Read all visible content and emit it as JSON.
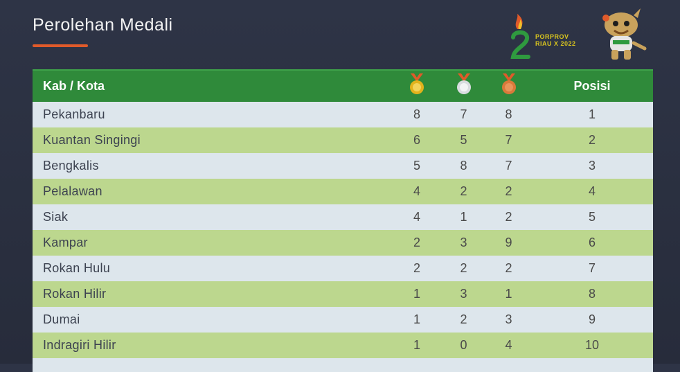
{
  "header": {
    "title": "Perolehan Medali",
    "logo_text_line1": "PORPROV",
    "logo_text_line2": "RIAU X 2022"
  },
  "table": {
    "columns": {
      "region": "Kab / Kota",
      "gold_icon": "gold-medal-icon",
      "silver_icon": "silver-medal-icon",
      "bronze_icon": "bronze-medal-icon",
      "position": "Posisi"
    },
    "rows": [
      {
        "name": "Pekanbaru",
        "gold": "8",
        "silver": "7",
        "bronze": "8",
        "pos": "1"
      },
      {
        "name": "Kuantan Singingi",
        "gold": "6",
        "silver": "5",
        "bronze": "7",
        "pos": "2"
      },
      {
        "name": "Bengkalis",
        "gold": "5",
        "silver": "8",
        "bronze": "7",
        "pos": "3"
      },
      {
        "name": "Pelalawan",
        "gold": "4",
        "silver": "2",
        "bronze": "2",
        "pos": "4"
      },
      {
        "name": "Siak",
        "gold": "4",
        "silver": "1",
        "bronze": "2",
        "pos": "5"
      },
      {
        "name": "Kampar",
        "gold": "2",
        "silver": "3",
        "bronze": "9",
        "pos": "6"
      },
      {
        "name": "Rokan Hulu",
        "gold": "2",
        "silver": "2",
        "bronze": "2",
        "pos": "7"
      },
      {
        "name": "Rokan Hilir",
        "gold": "1",
        "silver": "3",
        "bronze": "1",
        "pos": "8"
      },
      {
        "name": "Dumai",
        "gold": "1",
        "silver": "2",
        "bronze": "3",
        "pos": "9"
      },
      {
        "name": "Indragiri Hilir",
        "gold": "1",
        "silver": "0",
        "bronze": "4",
        "pos": "10"
      }
    ]
  },
  "colors": {
    "header_green": "#2f8a3a",
    "row_light": "#dde6ec",
    "row_green": "#bcd78e",
    "accent_orange": "#e05a2a",
    "gold": "#e2b21c",
    "silver": "#d8dcdf",
    "bronze": "#d9793a"
  }
}
